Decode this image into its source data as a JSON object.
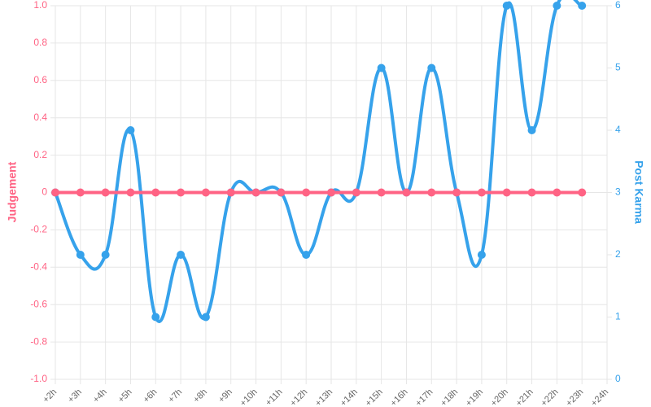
{
  "chart_data": {
    "type": "line",
    "categories": [
      "+2h",
      "+3h",
      "+4h",
      "+5h",
      "+6h",
      "+7h",
      "+8h",
      "+9h",
      "+10h",
      "+11h",
      "+12h",
      "+13h",
      "+14h",
      "+15h",
      "+16h",
      "+17h",
      "+18h",
      "+19h",
      "+20h",
      "+21h",
      "+22h",
      "+23h",
      "+24h"
    ],
    "series": [
      {
        "name": "Judgement",
        "color": "#ff6384",
        "axis": "y",
        "values": [
          0,
          0,
          0,
          0,
          0,
          0,
          0,
          0,
          0,
          0,
          0,
          0,
          0,
          0,
          0,
          0,
          0,
          0,
          0,
          0,
          0,
          0,
          null
        ]
      },
      {
        "name": "Post Karma",
        "color": "#36a2eb",
        "axis": "y2",
        "values": [
          3,
          2,
          2,
          4,
          1,
          2,
          1,
          3,
          3,
          3,
          2,
          3,
          3,
          5,
          3,
          5,
          3,
          2,
          6,
          4,
          6,
          6,
          null
        ]
      }
    ],
    "ylabel": "Judgement",
    "y2label": "Post Karma",
    "ylim": [
      -1,
      1
    ],
    "yticks": [
      {
        "value": -1,
        "label": "-1.0"
      },
      -0.8,
      -0.6,
      -0.4,
      -0.2,
      0,
      0.2,
      0.4,
      0.6,
      0.8,
      {
        "value": 1,
        "label": "1.0"
      }
    ],
    "y2lim": [
      0,
      6
    ],
    "y2ticks": [
      0,
      1,
      2,
      3,
      4,
      5,
      6
    ],
    "grid": true
  }
}
